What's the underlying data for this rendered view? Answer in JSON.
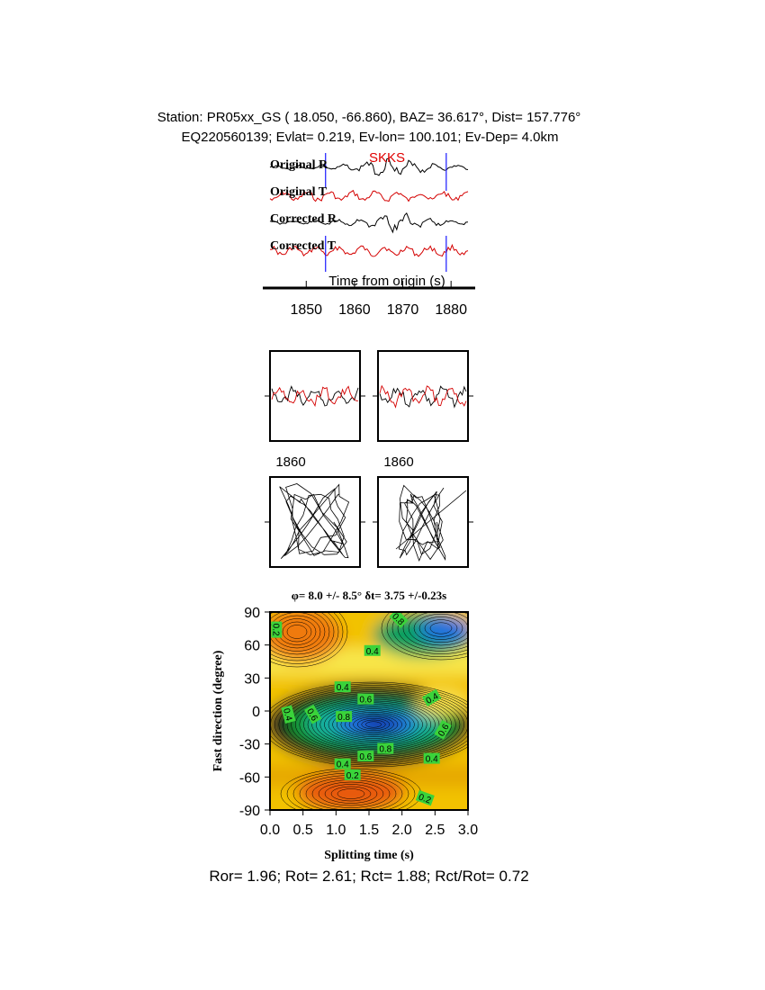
{
  "header": {
    "line1": "Station: PR05xx_GS (  18.050,  -66.860), BAZ=   36.617°, Dist=  157.776°",
    "line2": "EQ220560139; Evlat=   0.219, Ev-lon= 100.101; Ev-Dep=  4.0km"
  },
  "traces": {
    "phase_label": "SKKS",
    "labels": [
      "Original R",
      "Original T",
      "Corrected R",
      "Corrected T"
    ],
    "xlabel": "Time from origin (s)",
    "xticks": [
      1850,
      1860,
      1870,
      1880
    ],
    "xlim": [
      1841,
      1885
    ],
    "window_start": 1854,
    "window_end": 1879
  },
  "panels": {
    "waveform_tick": "1860",
    "waveform_tick_right": "1860"
  },
  "chart_data": {
    "type": "heatmap",
    "title": "φ= 8.0 +/- 8.5° δt= 3.75 +/-0.23s",
    "xlabel": "Splitting time (s)",
    "ylabel": "Fast direction (degree)",
    "xlim": [
      0.0,
      3.0
    ],
    "ylim": [
      -90,
      90
    ],
    "xticks": [
      "0.0",
      "0.5",
      "1.0",
      "1.5",
      "2.0",
      "2.5",
      "3.0"
    ],
    "yticks": [
      "90",
      "60",
      "30",
      "0",
      "-30",
      "-60",
      "-90"
    ],
    "contour_labels": [
      {
        "text": "0.2",
        "x": 0.1,
        "y": 74,
        "rot": 90
      },
      {
        "text": "0.4",
        "x": 1.1,
        "y": 22,
        "rot": 0
      },
      {
        "text": "0.6",
        "x": 1.45,
        "y": 11,
        "rot": 0
      },
      {
        "text": "0.4",
        "x": 2.45,
        "y": 12,
        "rot": -30
      },
      {
        "text": "0.6",
        "x": 0.65,
        "y": -3,
        "rot": 60
      },
      {
        "text": "0.4",
        "x": 0.28,
        "y": -3,
        "rot": 75
      },
      {
        "text": "0.8",
        "x": 1.12,
        "y": -5,
        "rot": 0
      },
      {
        "text": "0.6",
        "x": 2.62,
        "y": -17,
        "rot": -60
      },
      {
        "text": "0.8",
        "x": 1.75,
        "y": -34,
        "rot": 0
      },
      {
        "text": "0.6",
        "x": 1.45,
        "y": -41,
        "rot": 0
      },
      {
        "text": "0.4",
        "x": 2.45,
        "y": -43,
        "rot": 0
      },
      {
        "text": "0.4",
        "x": 1.1,
        "y": -48,
        "rot": 0
      },
      {
        "text": "0.2",
        "x": 1.25,
        "y": -58,
        "rot": 0
      },
      {
        "text": "0.2",
        "x": 2.35,
        "y": -79,
        "rot": 20
      },
      {
        "text": "0.8",
        "x": 1.95,
        "y": 84,
        "rot": 45
      },
      {
        "text": "0.4",
        "x": 1.55,
        "y": 55,
        "rot": 0
      }
    ]
  },
  "footer": {
    "text": "Ror= 1.96; Rot= 2.61; Rct= 1.88; Rct/Rot= 0.72"
  },
  "colors": {
    "trace_black": "#000000",
    "trace_red": "#d40000",
    "window_marker": "#1a1aff",
    "phase_label": "#e00000"
  }
}
